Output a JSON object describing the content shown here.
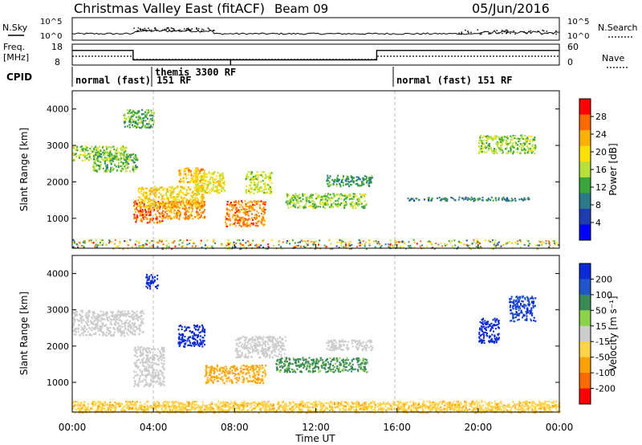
{
  "header": {
    "station": "Christmas Valley East (fitACF)",
    "beam": "Beam 09",
    "date": "05/Jun/2016"
  },
  "nsky_panel": {
    "left_label": "N.Sky",
    "right_label": "N.Search",
    "left_ticks": [
      "10^5",
      "10^0"
    ],
    "right_ticks": [
      "10^5",
      "10^0"
    ]
  },
  "freq_panel": {
    "left_label_1": "Freq.",
    "left_label_2": "[MHz]",
    "right_label": "Nave",
    "left_ticks": [
      "18",
      "8"
    ],
    "right_ticks": [
      "60",
      "0"
    ],
    "freq_segments": [
      {
        "t0": 0.0,
        "t1": 3.0,
        "v": 15
      },
      {
        "t0": 3.0,
        "t1": 15.0,
        "v": 10.5
      },
      {
        "t0": 15.0,
        "t1": 24.0,
        "v": 15
      }
    ],
    "freq_drop_hour": 7.8
  },
  "cpid": {
    "label": "CPID",
    "modes": [
      {
        "start": 0.0,
        "text": "normal (fast) 151 RF"
      },
      {
        "start": 3.0,
        "text": "themis 3300 RF"
      },
      {
        "start": 15.0,
        "text": "normal (fast) 151 RF"
      }
    ]
  },
  "power_panel": {
    "ylabel": "Slant Range [km]",
    "colorbar_label": "Power [dB]",
    "colorbar_ticks": [
      "28",
      "24",
      "20",
      "16",
      "12",
      "8",
      "4"
    ],
    "colorbar_colors": [
      "#ff0000",
      "#ff6a00",
      "#ffb000",
      "#ffe000",
      "#b8e03a",
      "#3aa63a",
      "#2b7a88",
      "#1e3db0",
      "#0000ff"
    ]
  },
  "velocity_panel": {
    "ylabel": "Slant Range [km]",
    "colorbar_label": "Velocity [m s⁻¹]",
    "colorbar_ticks": [
      "200",
      "100",
      "50",
      "15",
      "-15",
      "-50",
      "-100",
      "-200"
    ],
    "colorbar_colors": [
      "#0a2ad6",
      "#2255cc",
      "#3a8a55",
      "#8ad24a",
      "#cccccc",
      "#ffd34a",
      "#ffa200",
      "#ff6a00",
      "#ff0000"
    ]
  },
  "chart_data": {
    "type": "heatmap",
    "x_axis_label": "Time UT",
    "x_ticks": [
      "00:00",
      "04:00",
      "08:00",
      "12:00",
      "16:00",
      "20:00",
      "00:00"
    ],
    "x_range_hours": [
      0,
      24
    ],
    "y_ticks": [
      "4000",
      "3000",
      "2000",
      "1000"
    ],
    "y_range_km": [
      180,
      4500
    ],
    "power_regions": [
      {
        "t0": 0.0,
        "t1": 2.8,
        "r0": 2600,
        "r1": 3000,
        "v": 14
      },
      {
        "t0": 1.0,
        "t1": 3.2,
        "r0": 2300,
        "r1": 2800,
        "v": 12
      },
      {
        "t0": 3.0,
        "t1": 4.5,
        "r0": 900,
        "r1": 1500,
        "v": 26
      },
      {
        "t0": 3.2,
        "t1": 6.5,
        "r0": 1300,
        "r1": 1900,
        "v": 20
      },
      {
        "t0": 4.5,
        "t1": 6.5,
        "r0": 1000,
        "r1": 1500,
        "v": 24
      },
      {
        "t0": 5.2,
        "t1": 6.5,
        "r0": 2000,
        "r1": 2400,
        "v": 22
      },
      {
        "t0": 6.0,
        "t1": 7.5,
        "r0": 1700,
        "r1": 2300,
        "v": 18
      },
      {
        "t0": 7.5,
        "t1": 9.5,
        "r0": 800,
        "r1": 1500,
        "v": 25
      },
      {
        "t0": 8.5,
        "t1": 9.8,
        "r0": 1700,
        "r1": 2300,
        "v": 16
      },
      {
        "t0": 10.5,
        "t1": 14.5,
        "r0": 1300,
        "r1": 1700,
        "v": 14
      },
      {
        "t0": 12.5,
        "t1": 14.8,
        "r0": 1900,
        "r1": 2200,
        "v": 10
      },
      {
        "t0": 16.5,
        "t1": 22.5,
        "r0": 1500,
        "r1": 1600,
        "v": 8
      },
      {
        "t0": 20.0,
        "t1": 22.8,
        "r0": 2800,
        "r1": 3300,
        "v": 14
      },
      {
        "t0": 2.5,
        "t1": 4.0,
        "r0": 3500,
        "r1": 4000,
        "v": 12
      }
    ],
    "velocity_regions": [
      {
        "t0": 0.0,
        "t1": 3.5,
        "r0": 2300,
        "r1": 3000,
        "v": 0
      },
      {
        "t0": 3.0,
        "t1": 4.5,
        "r0": 900,
        "r1": 2000,
        "v": 0
      },
      {
        "t0": 5.2,
        "t1": 6.5,
        "r0": 2000,
        "r1": 2600,
        "v": 210
      },
      {
        "t0": 3.6,
        "t1": 4.2,
        "r0": 3600,
        "r1": 4000,
        "v": 180
      },
      {
        "t0": 6.5,
        "t1": 9.5,
        "r0": 1000,
        "r1": 1500,
        "v": -60
      },
      {
        "t0": 8.0,
        "t1": 10.5,
        "r0": 1700,
        "r1": 2300,
        "v": 0
      },
      {
        "t0": 10.0,
        "t1": 14.5,
        "r0": 1300,
        "r1": 1700,
        "v": 40
      },
      {
        "t0": 12.5,
        "t1": 14.8,
        "r0": 1900,
        "r1": 2200,
        "v": 0
      },
      {
        "t0": 20.0,
        "t1": 21.0,
        "r0": 2100,
        "r1": 2800,
        "v": 210
      },
      {
        "t0": 21.5,
        "t1": 22.8,
        "r0": 2700,
        "r1": 3400,
        "v": 150
      },
      {
        "t0": 0.0,
        "t1": 24.0,
        "r0": 180,
        "r1": 500,
        "v": -40
      }
    ]
  }
}
